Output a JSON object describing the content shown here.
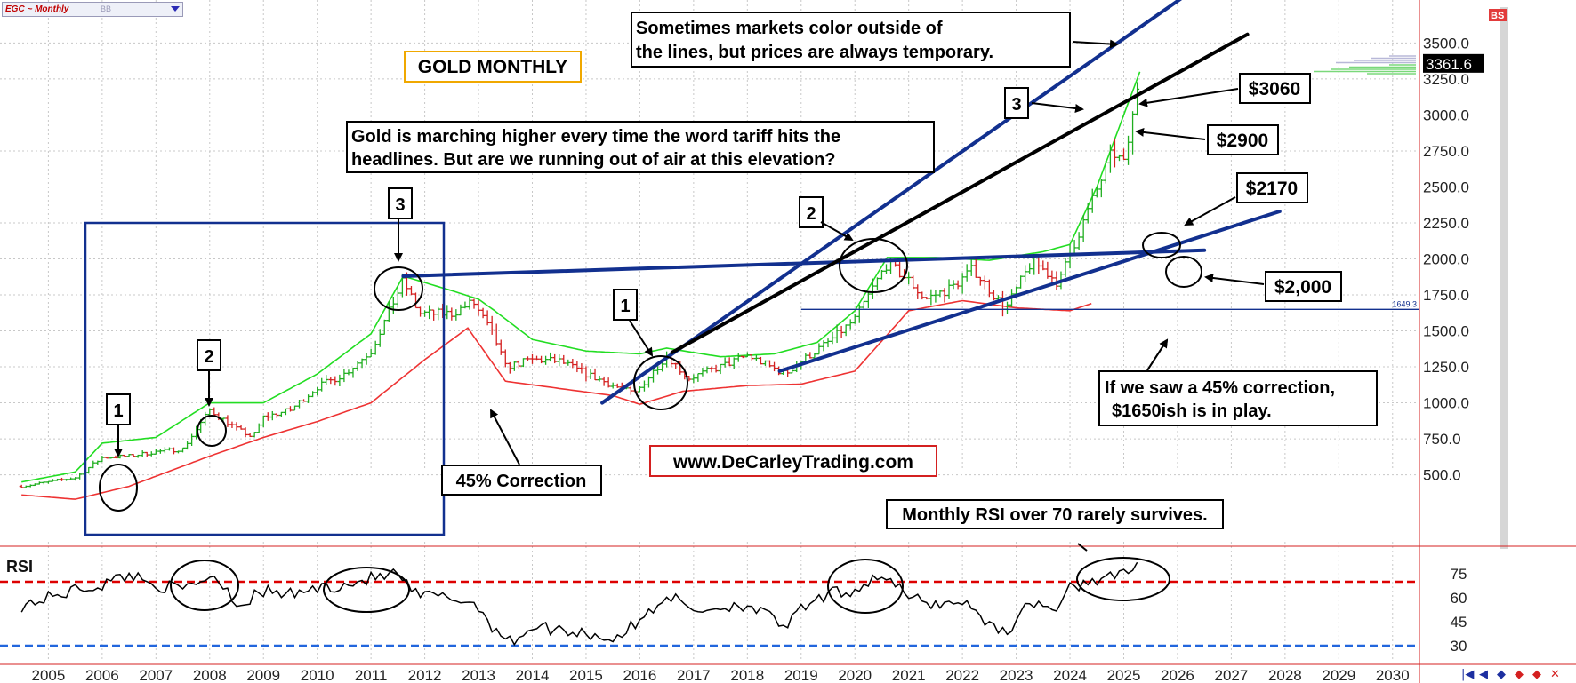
{
  "ticker": {
    "symbol": "EGC ~ Monthly",
    "overlay": "BB"
  },
  "price_badge": "3361.6",
  "corner_icon": "BS",
  "nav_icons": [
    "first-icon",
    "prev-icon",
    "zoom-in-icon",
    "zoom-out-icon",
    "zoom-reset-icon",
    "close-icon"
  ],
  "colors": {
    "bar_up": "#1fae1f",
    "bar_down": "#d42020",
    "band_upper": "#22dd22",
    "band_lower": "#ee3333",
    "trend_blue": "#12308f",
    "trend_black": "#000000",
    "rsi_70": "#dd0000",
    "rsi_30": "#2266dd",
    "box_border": "#12308f",
    "site_border": "#d42020",
    "title_border": "#f0a800"
  },
  "chart_data": [
    {
      "type": "bar",
      "title": "GOLD MONTHLY",
      "x_axis_years": [
        "2005",
        "2006",
        "2007",
        "2008",
        "2009",
        "2010",
        "2011",
        "2012",
        "2013",
        "2014",
        "2015",
        "2016",
        "2017",
        "2018",
        "2019",
        "2020",
        "2021",
        "2022",
        "2023",
        "2024",
        "2025",
        "2026",
        "2027",
        "2028",
        "2029",
        "2030"
      ],
      "y_ticks": [
        "3500.0",
        "3250.0",
        "3000.0",
        "2750.0",
        "2500.0",
        "2250.0",
        "2000.0",
        "1750.0",
        "1500.0",
        "1250.0",
        "1000.0",
        "750.0",
        "500.0"
      ],
      "ylim": [
        300,
        3700
      ],
      "last_price": 3361.6,
      "reference_line": {
        "label": "1649.3",
        "value": 1649.3
      },
      "price_anchors": [
        [
          2004.5,
          420
        ],
        [
          2005.5,
          480
        ],
        [
          2006.0,
          620
        ],
        [
          2006.5,
          630
        ],
        [
          2007.0,
          660
        ],
        [
          2007.5,
          680
        ],
        [
          2008.0,
          950
        ],
        [
          2008.5,
          820
        ],
        [
          2008.8,
          760
        ],
        [
          2009.0,
          900
        ],
        [
          2009.5,
          950
        ],
        [
          2010.0,
          1110
        ],
        [
          2010.5,
          1200
        ],
        [
          2011.0,
          1360
        ],
        [
          2011.6,
          1850
        ],
        [
          2011.9,
          1620
        ],
        [
          2012.5,
          1620
        ],
        [
          2012.9,
          1700
        ],
        [
          2013.3,
          1450
        ],
        [
          2013.5,
          1250
        ],
        [
          2014.0,
          1300
        ],
        [
          2014.5,
          1290
        ],
        [
          2015.0,
          1200
        ],
        [
          2015.9,
          1060
        ],
        [
          2016.5,
          1330
        ],
        [
          2016.9,
          1170
        ],
        [
          2017.5,
          1250
        ],
        [
          2018.0,
          1330
        ],
        [
          2018.7,
          1200
        ],
        [
          2019.0,
          1290
        ],
        [
          2019.5,
          1420
        ],
        [
          2020.0,
          1580
        ],
        [
          2020.6,
          1970
        ],
        [
          2021.0,
          1850
        ],
        [
          2021.3,
          1720
        ],
        [
          2021.8,
          1800
        ],
        [
          2022.2,
          1930
        ],
        [
          2022.8,
          1650
        ],
        [
          2023.3,
          1990
        ],
        [
          2023.8,
          1830
        ],
        [
          2024.0,
          2040
        ],
        [
          2024.3,
          2300
        ],
        [
          2024.8,
          2750
        ],
        [
          2025.0,
          2650
        ],
        [
          2025.2,
          3050
        ],
        [
          2025.3,
          3360
        ]
      ],
      "bollinger_upper": [
        [
          2004.5,
          450
        ],
        [
          2005.5,
          520
        ],
        [
          2006.0,
          720
        ],
        [
          2007.0,
          760
        ],
        [
          2008.0,
          1000
        ],
        [
          2008.5,
          1000
        ],
        [
          2009.0,
          1000
        ],
        [
          2010.0,
          1200
        ],
        [
          2011.0,
          1480
        ],
        [
          2011.6,
          1880
        ],
        [
          2012.5,
          1780
        ],
        [
          2013.0,
          1720
        ],
        [
          2013.3,
          1640
        ],
        [
          2014.0,
          1440
        ],
        [
          2015.0,
          1360
        ],
        [
          2016.0,
          1340
        ],
        [
          2016.5,
          1380
        ],
        [
          2017.5,
          1320
        ],
        [
          2018.5,
          1340
        ],
        [
          2019.3,
          1420
        ],
        [
          2020.0,
          1640
        ],
        [
          2020.6,
          2010
        ],
        [
          2021.5,
          2010
        ],
        [
          2022.5,
          1990
        ],
        [
          2023.5,
          2050
        ],
        [
          2024.0,
          2100
        ],
        [
          2024.5,
          2500
        ],
        [
          2025.3,
          3300
        ]
      ],
      "bollinger_lower": [
        [
          2004.5,
          360
        ],
        [
          2005.5,
          330
        ],
        [
          2006.5,
          420
        ],
        [
          2008.0,
          630
        ],
        [
          2009.0,
          760
        ],
        [
          2010.0,
          870
        ],
        [
          2011.0,
          1000
        ],
        [
          2012.0,
          1300
        ],
        [
          2012.8,
          1520
        ],
        [
          2013.5,
          1150
        ],
        [
          2014.5,
          1100
        ],
        [
          2015.5,
          1050
        ],
        [
          2016.0,
          990
        ],
        [
          2016.8,
          1080
        ],
        [
          2018.0,
          1120
        ],
        [
          2019.0,
          1130
        ],
        [
          2020.0,
          1220
        ],
        [
          2021.0,
          1640
        ],
        [
          2022.0,
          1710
        ],
        [
          2023.0,
          1660
        ],
        [
          2024.0,
          1640
        ],
        [
          2024.4,
          1690
        ]
      ],
      "trendlines": [
        {
          "color": "blue",
          "from": [
            2011.6,
            1880
          ],
          "to": [
            2026.5,
            2060
          ]
        },
        {
          "color": "blue",
          "from": [
            2015.3,
            1000
          ],
          "to": [
            2026.3,
            3870
          ]
        },
        {
          "color": "black",
          "from": [
            2016.6,
            1350
          ],
          "to": [
            2027.3,
            3560
          ]
        },
        {
          "color": "blue",
          "from": [
            2018.6,
            1220
          ],
          "to": [
            2027.9,
            2330
          ]
        }
      ]
    },
    {
      "type": "line",
      "title": "RSI",
      "y_ticks": [
        "75",
        "60",
        "45",
        "30"
      ],
      "ylim": [
        20,
        90
      ],
      "levels": [
        70,
        30
      ],
      "rsi_anchors": [
        [
          2004.5,
          55
        ],
        [
          2005.0,
          60
        ],
        [
          2005.5,
          65
        ],
        [
          2006.0,
          68
        ],
        [
          2006.5,
          75
        ],
        [
          2007.0,
          68
        ],
        [
          2007.5,
          65
        ],
        [
          2008.0,
          74
        ],
        [
          2008.3,
          68
        ],
        [
          2008.5,
          55
        ],
        [
          2009.0,
          64
        ],
        [
          2009.5,
          62
        ],
        [
          2010.0,
          66
        ],
        [
          2010.5,
          68
        ],
        [
          2011.0,
          72
        ],
        [
          2011.5,
          75
        ],
        [
          2011.8,
          62
        ],
        [
          2012.5,
          60
        ],
        [
          2013.0,
          55
        ],
        [
          2013.3,
          40
        ],
        [
          2013.6,
          32
        ],
        [
          2014.0,
          42
        ],
        [
          2014.5,
          40
        ],
        [
          2015.0,
          38
        ],
        [
          2015.5,
          34
        ],
        [
          2016.0,
          45
        ],
        [
          2016.5,
          62
        ],
        [
          2017.0,
          52
        ],
        [
          2017.5,
          54
        ],
        [
          2018.0,
          56
        ],
        [
          2018.7,
          42
        ],
        [
          2019.0,
          52
        ],
        [
          2019.5,
          62
        ],
        [
          2020.0,
          65
        ],
        [
          2020.5,
          75
        ],
        [
          2021.0,
          60
        ],
        [
          2021.5,
          56
        ],
        [
          2022.0,
          58
        ],
        [
          2022.5,
          44
        ],
        [
          2022.8,
          38
        ],
        [
          2023.3,
          58
        ],
        [
          2023.8,
          52
        ],
        [
          2024.0,
          66
        ],
        [
          2024.5,
          72
        ],
        [
          2025.0,
          74
        ],
        [
          2025.3,
          80
        ]
      ]
    }
  ],
  "annotations": {
    "chart_title": "GOLD MONTHLY",
    "top_note_line1": "Sometimes markets color outside of",
    "top_note_line2": "the lines, but prices are always temporary.",
    "tariff_line1": "Gold is marching higher every time the word tariff hits the",
    "tariff_line2": "headlines. But are we running out of air at this elevation?",
    "website": "www.DeCarleyTrading.com",
    "correction": "45% Correction",
    "correction_note_line1": "If we saw a 45% correction,",
    "correction_note_line2": "$1650ish is in play.",
    "rsi_note": "Monthly RSI over 70 rarely survives.",
    "level_3060": "$3060",
    "level_2900": "$2900",
    "level_2170": "$2170",
    "level_2000": "$2,000",
    "wave_1": "1",
    "wave_2": "2",
    "wave_3": "3"
  }
}
